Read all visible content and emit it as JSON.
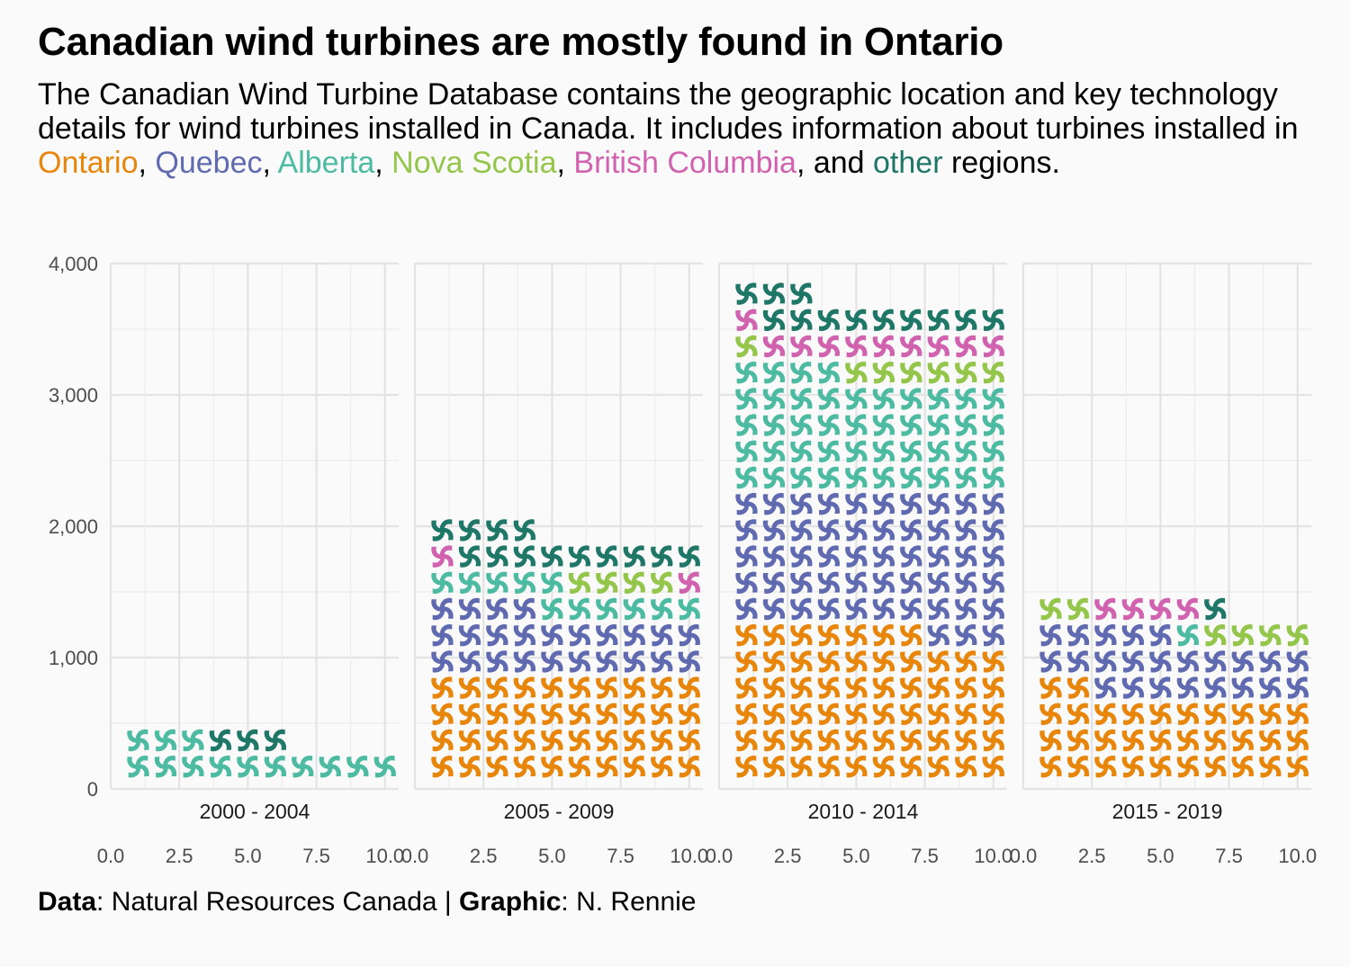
{
  "title": "Canadian wind turbines are mostly found in Ontario",
  "subtitle": {
    "intro": "The Canadian Wind Turbine Database contains the geographic location and key technology details for wind turbines installed in Canada. It includes information about turbines installed in ",
    "regions": [
      {
        "label": "Ontario",
        "color": "#E7860A",
        "after": ", "
      },
      {
        "label": "Quebec",
        "color": "#5F6AB0",
        "after": ", "
      },
      {
        "label": "Alberta",
        "color": "#4CBBA2",
        "after": ", "
      },
      {
        "label": "Nova Scotia",
        "color": "#93C64A",
        "after": ", "
      },
      {
        "label": "British Columbia",
        "color": "#D162AF",
        "after": ", and "
      },
      {
        "label": "other",
        "color": "#1F7767",
        "after": " regions."
      }
    ]
  },
  "caption": {
    "data_label": "Data",
    "data_value": ": Natural Resources Canada | ",
    "graphic_label": "Graphic",
    "graphic_value": ": N. Rennie"
  },
  "chart_data": {
    "type": "waffle",
    "unit": "each turbine glyph represents about 100 turbines (stacked in rows of 10)",
    "regions_order": [
      "Ontario",
      "Quebec",
      "Alberta",
      "Nova Scotia",
      "British Columbia",
      "other"
    ],
    "colors": {
      "Ontario": "#E7860A",
      "Quebec": "#5F6AB0",
      "Alberta": "#4CBBA2",
      "Nova Scotia": "#93C64A",
      "British Columbia": "#D162AF",
      "other": "#1F7767"
    },
    "yticks": [
      "0",
      "1,000",
      "2,000",
      "3,000",
      "4,000"
    ],
    "ylim": [
      0,
      4000
    ],
    "xticks": [
      "0.0",
      "2.5",
      "5.0",
      "7.5",
      "10.0"
    ],
    "xlim": [
      0,
      10.5
    ],
    "panels": [
      {
        "label": "2000 - 2004",
        "counts": {
          "Ontario": 0,
          "Quebec": 0,
          "Alberta": 13,
          "Nova Scotia": 0,
          "British Columbia": 0,
          "other": 3
        }
      },
      {
        "label": "2005 - 2009",
        "counts": {
          "Ontario": 40,
          "Quebec": 24,
          "Alberta": 11,
          "Nova Scotia": 4,
          "British Columbia": 2,
          "other": 13
        }
      },
      {
        "label": "2010 - 2014",
        "counts": {
          "Ontario": 57,
          "Quebec": 53,
          "Alberta": 44,
          "Nova Scotia": 7,
          "British Columbia": 10,
          "other": 12
        }
      },
      {
        "label": "2015 - 2019",
        "counts": {
          "Ontario": 32,
          "Quebec": 23,
          "Alberta": 1,
          "Nova Scotia": 6,
          "British Columbia": 4,
          "other": 1
        }
      }
    ]
  }
}
